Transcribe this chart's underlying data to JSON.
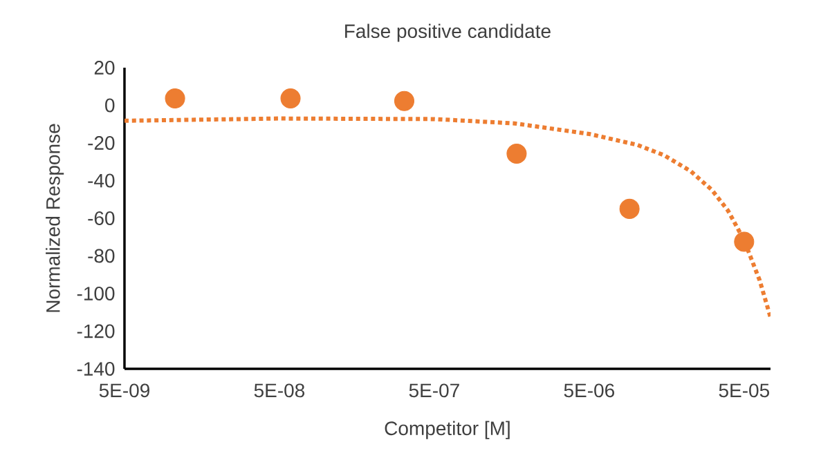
{
  "chart_data": {
    "type": "scatter",
    "title": "False positive candidate",
    "xlabel": "Competitor [M]",
    "ylabel": "Normalized Response",
    "log": "x",
    "marker": "circle",
    "xlim": [
      5e-09,
      7.4e-05
    ],
    "ylim": [
      -140,
      20
    ],
    "xticks": [
      {
        "value": 5e-09,
        "label": "5E-09"
      },
      {
        "value": 5e-08,
        "label": "5E-08"
      },
      {
        "value": 5e-07,
        "label": "5E-07"
      },
      {
        "value": 5e-06,
        "label": "5E-06"
      },
      {
        "value": 5e-05,
        "label": "5E-05"
      }
    ],
    "yticks": [
      20,
      0,
      -20,
      -40,
      -60,
      -80,
      -100,
      -120,
      -140
    ],
    "series": [
      {
        "color": "#ed7d31",
        "x": [
          1.06e-08,
          5.9e-08,
          3.2e-07,
          1.7e-06,
          9.1e-06,
          5e-05
        ],
        "values": [
          3.7,
          3.7,
          2.3,
          -25.7,
          -55,
          -72.5
        ]
      },
      {
        "type": "line",
        "color": "#ed7d31",
        "marker": "none",
        "line_style": "dotted",
        "x": [
          5e-09,
          5e-08,
          5e-07,
          1.65e-06,
          5e-06,
          1.02e-05,
          1.52e-05,
          2.26e-05,
          3.1e-05,
          3.94e-05,
          5e-05,
          6.3e-05,
          7.4e-05
        ],
        "values": [
          -8.2,
          -7,
          -7.3,
          -9.6,
          -15.2,
          -21,
          -26.5,
          -35,
          -45,
          -56,
          -71.7,
          -93,
          -112.6
        ]
      }
    ]
  }
}
